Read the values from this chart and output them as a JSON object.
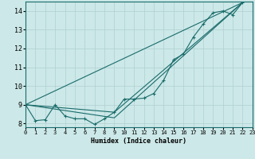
{
  "xlabel": "Humidex (Indice chaleur)",
  "background_color": "#cce8e8",
  "grid_color": "#b0d0d0",
  "line_color": "#1a6b6b",
  "xlim": [
    0,
    23
  ],
  "ylim": [
    7.8,
    14.5
  ],
  "xticks": [
    0,
    1,
    2,
    3,
    4,
    5,
    6,
    7,
    8,
    9,
    10,
    11,
    12,
    13,
    14,
    15,
    16,
    17,
    18,
    19,
    20,
    21,
    22,
    23
  ],
  "yticks": [
    8,
    9,
    10,
    11,
    12,
    13,
    14
  ],
  "line_main": {
    "x": [
      0,
      1,
      2,
      3,
      4,
      5,
      6,
      7,
      8,
      9,
      10,
      11,
      12,
      13,
      14,
      15,
      16,
      17,
      18,
      19,
      20,
      21,
      22
    ],
    "y": [
      9.0,
      8.15,
      8.2,
      9.0,
      8.4,
      8.25,
      8.25,
      7.95,
      8.25,
      8.6,
      9.3,
      9.3,
      9.35,
      9.6,
      10.3,
      11.4,
      11.7,
      12.6,
      13.3,
      13.9,
      14.0,
      13.8,
      14.45
    ]
  },
  "line_straight": {
    "x": [
      0,
      22
    ],
    "y": [
      9.0,
      14.45
    ]
  },
  "line_bent1": {
    "x": [
      0,
      9,
      22
    ],
    "y": [
      9.0,
      8.6,
      14.45
    ]
  },
  "line_bent2": {
    "x": [
      0,
      9,
      22
    ],
    "y": [
      9.0,
      8.3,
      14.45
    ]
  }
}
